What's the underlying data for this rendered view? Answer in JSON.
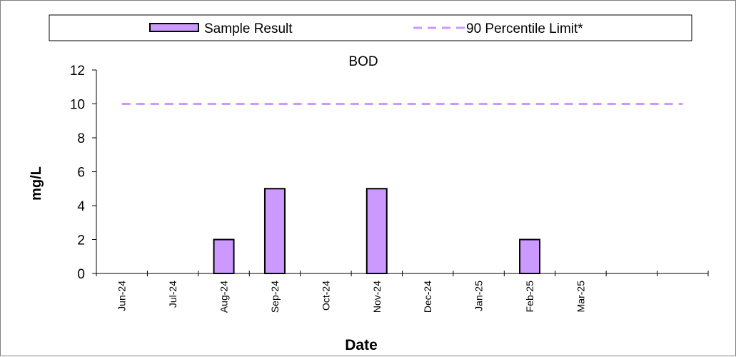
{
  "chart_data": {
    "type": "bar",
    "title": "BOD",
    "xlabel": "Date",
    "ylabel": "mg/L",
    "ylim": [
      0,
      12
    ],
    "yticks": [
      "0",
      "2",
      "4",
      "6",
      "8",
      "10",
      "12"
    ],
    "categories": [
      "Jun-24",
      "Jul-24",
      "Aug-24",
      "Sep-24",
      "Oct-24",
      "Nov-24",
      "Dec-24",
      "Jan-25",
      "Feb-25",
      "Mar-25",
      "",
      ""
    ],
    "series": [
      {
        "name": "Sample Result",
        "type": "bar",
        "color": "#cc99ff",
        "values": [
          null,
          null,
          2,
          5,
          null,
          5,
          null,
          null,
          2,
          null,
          null,
          null
        ]
      },
      {
        "name": "90 Percentile Limit*",
        "type": "line",
        "style": "dashed",
        "color": "#cc99ff",
        "values": [
          10,
          10,
          10,
          10,
          10,
          10,
          10,
          10,
          10,
          10,
          10,
          10
        ]
      }
    ],
    "legend": {
      "position": "top"
    },
    "grid": false
  }
}
